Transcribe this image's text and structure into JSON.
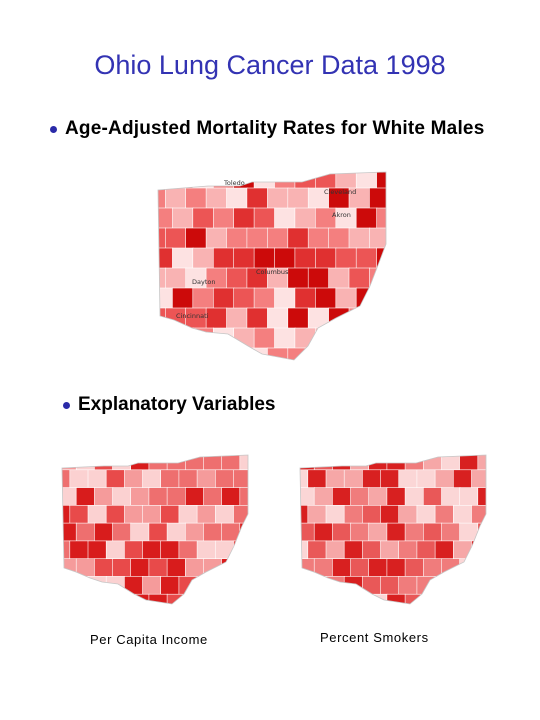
{
  "title": "Ohio Lung Cancer Data 1998",
  "bullet_primary": "Age-Adjusted Mortality Rates for White Males",
  "bullet_secondary": "Explanatory Variables",
  "maps": {
    "mortality": {
      "cities": [
        "Toledo",
        "Cleveland",
        "Akron",
        "Columbus",
        "Dayton",
        "Cincinnati"
      ],
      "palette": [
        "#fde2e2",
        "#f9b3b3",
        "#f47f7f",
        "#ec5555",
        "#e03030",
        "#cc0a0a"
      ]
    },
    "income": {
      "caption": "Per Capita Income",
      "palette": [
        "#fbd1d1",
        "#f59b9b",
        "#ee6f6f",
        "#e84a4a",
        "#d81c1c"
      ]
    },
    "smokers": {
      "caption": "Percent Smokers",
      "palette": [
        "#fbd6d6",
        "#f6a7a7",
        "#f07c7c",
        "#e95858",
        "#d82020"
      ]
    }
  }
}
